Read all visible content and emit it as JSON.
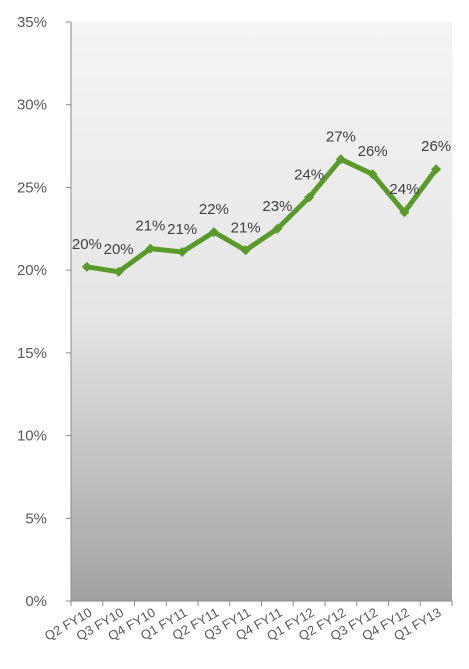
{
  "chart_data": {
    "type": "line",
    "categories": [
      "Q2 FY10",
      "Q3 FY10",
      "Q4 FY10",
      "Q1 FY11",
      "Q2 FY11",
      "Q3 FY11",
      "Q4 FY11",
      "Q1 FY12",
      "Q2 FY12",
      "Q3 FY12",
      "Q4 FY12",
      "Q1 FY13"
    ],
    "series": [
      {
        "values": [
          20.2,
          19.9,
          21.3,
          21.1,
          22.3,
          21.2,
          22.5,
          24.4,
          26.7,
          25.8,
          23.5,
          26.1
        ],
        "data_labels": [
          "20%",
          "20%",
          "21%",
          "21%",
          "22%",
          "21%",
          "23%",
          "24%",
          "27%",
          "26%",
          "24%",
          "26%"
        ],
        "color": "#5a9a2a"
      }
    ],
    "y_ticks": [
      "0%",
      "5%",
      "10%",
      "15%",
      "20%",
      "25%",
      "30%",
      "35%"
    ],
    "ylim": [
      0,
      35
    ],
    "xlabel": "",
    "ylabel": "",
    "grid": false,
    "legend": "none",
    "plot_background": "gradient light-gray to dark-gray"
  }
}
